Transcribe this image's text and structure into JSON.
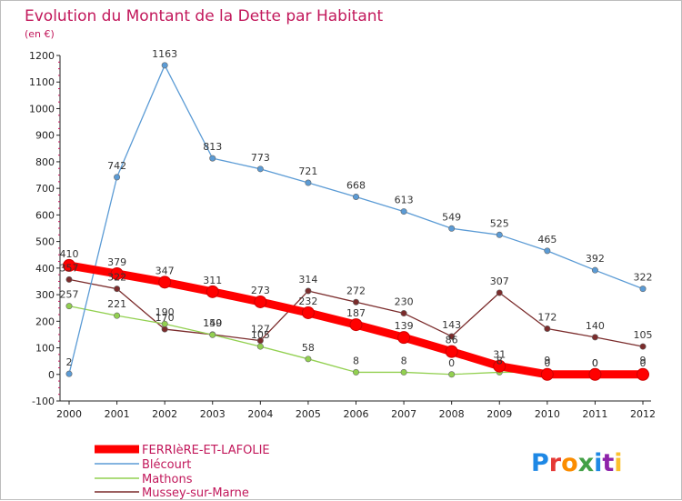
{
  "chart_data": {
    "type": "line",
    "title": "Evolution du Montant de la Dette par Habitant",
    "subtitle": "(en €)",
    "categories": [
      "2000",
      "2001",
      "2002",
      "2003",
      "2004",
      "2005",
      "2006",
      "2007",
      "2008",
      "2009",
      "2010",
      "2011",
      "2012"
    ],
    "ylim": [
      -100,
      1200
    ],
    "yticks": [
      -100,
      0,
      100,
      200,
      300,
      400,
      500,
      600,
      700,
      800,
      900,
      1000,
      1100,
      1200
    ],
    "grid": false,
    "legend_position": "bottom-left",
    "series": [
      {
        "name": "FERRIèRE-ET-LAFOLIE",
        "color": "#ff0000",
        "values": [
          410,
          379,
          347,
          311,
          273,
          232,
          187,
          139,
          86,
          31,
          0,
          0,
          0
        ]
      },
      {
        "name": "Blécourt",
        "color": "#5b9bd5",
        "values": [
          2,
          742,
          1163,
          813,
          773,
          721,
          668,
          613,
          549,
          525,
          465,
          392,
          322
        ]
      },
      {
        "name": "Mathons",
        "color": "#92d050",
        "values": [
          257,
          221,
          190,
          149,
          105,
          58,
          8,
          8,
          0,
          8,
          9,
          0,
          9
        ]
      },
      {
        "name": "Mussey-sur-Marne",
        "color": "#7b2c2c",
        "values": [
          357,
          322,
          170,
          150,
          127,
          314,
          272,
          230,
          143,
          307,
          172,
          140,
          105
        ]
      }
    ]
  },
  "branding": {
    "name": "Proxiti",
    "letters": [
      "P",
      "r",
      "o",
      "x",
      "i",
      "t",
      "i"
    ],
    "colors": [
      "#1e88e5",
      "#e53935",
      "#fb8c00",
      "#43a047",
      "#1e88e5",
      "#8e24aa",
      "#fbc02d"
    ]
  }
}
